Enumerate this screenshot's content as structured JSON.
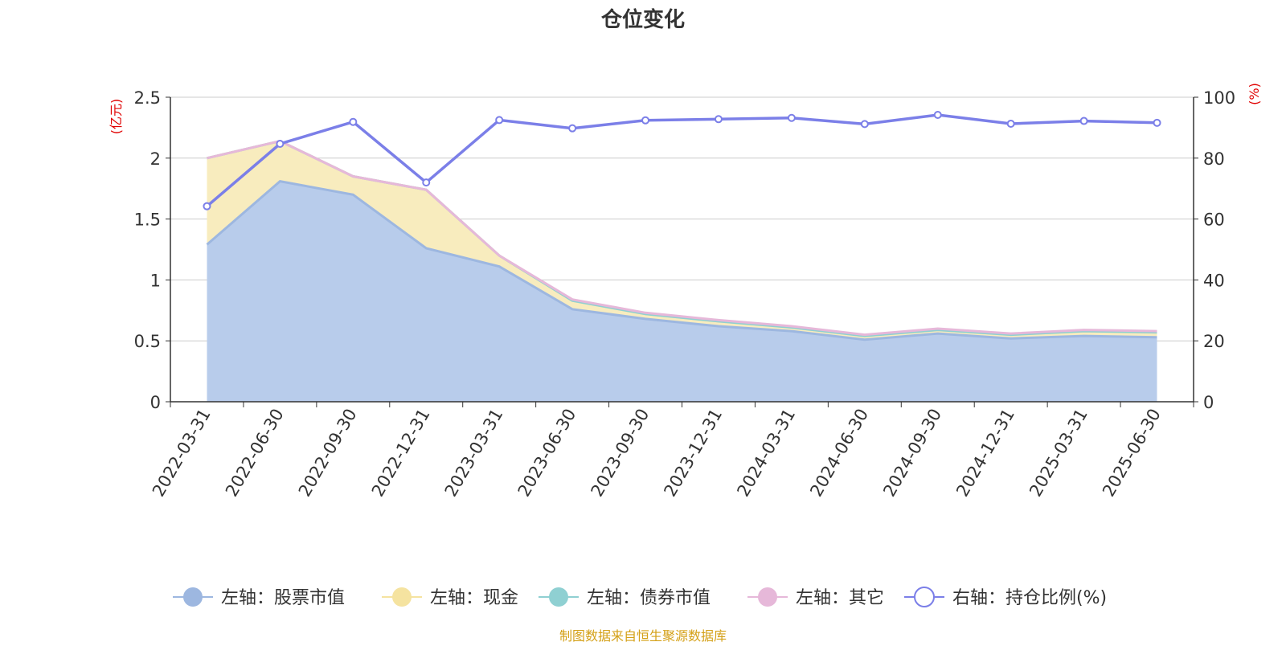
{
  "chart_data": {
    "type": "area",
    "title": "仓位变化",
    "left_axis": {
      "unit_label": "(亿元)",
      "ylim": [
        0,
        2.5
      ],
      "ticks": [
        "0",
        "0.5",
        "1",
        "1.5",
        "2",
        "2.5"
      ]
    },
    "right_axis": {
      "unit_label": "(%)",
      "ylim": [
        0,
        100
      ],
      "ticks": [
        "0",
        "20",
        "40",
        "60",
        "80",
        "100"
      ]
    },
    "grid": true,
    "categories": [
      "2022-03-31",
      "2022-06-30",
      "2022-09-30",
      "2022-12-31",
      "2023-03-31",
      "2023-06-30",
      "2023-09-30",
      "2023-12-31",
      "2024-03-31",
      "2024-06-30",
      "2024-09-30",
      "2024-12-31",
      "2025-03-31",
      "2025-06-30"
    ],
    "series": [
      {
        "name": "左轴：股票市值",
        "axis": "left",
        "kind": "stacked-area",
        "color": "#9db7e0",
        "fill": "#b8cceb",
        "values": [
          1.29,
          1.81,
          1.7,
          1.26,
          1.11,
          0.76,
          0.68,
          0.62,
          0.58,
          0.51,
          0.56,
          0.52,
          0.54,
          0.53
        ]
      },
      {
        "name": "左轴：现金",
        "axis": "left",
        "kind": "stacked-area",
        "color": "#f5e3a0",
        "fill": "#f8ecbe",
        "values": [
          0.71,
          0.33,
          0.15,
          0.48,
          0.09,
          0.07,
          0.04,
          0.04,
          0.03,
          0.03,
          0.03,
          0.03,
          0.04,
          0.04
        ]
      },
      {
        "name": "左轴：债券市值",
        "axis": "left",
        "kind": "stacked-area",
        "color": "#8fd0d2",
        "fill": "#b7e1e2",
        "values": [
          0,
          0,
          0,
          0,
          0,
          0,
          0,
          0,
          0,
          0,
          0,
          0,
          0,
          0
        ]
      },
      {
        "name": "左轴：其它",
        "axis": "left",
        "kind": "stacked-area",
        "color": "#e6b8d9",
        "fill": "#efcfe5",
        "values": [
          0,
          0,
          0,
          0,
          0,
          0.01,
          0.01,
          0.01,
          0.01,
          0.01,
          0.01,
          0.01,
          0.01,
          0.01
        ]
      },
      {
        "name": "右轴：持仓比例(%)",
        "axis": "right",
        "kind": "line",
        "color": "#7b7fe8",
        "values": [
          64.2,
          84.7,
          91.9,
          72.0,
          92.5,
          89.8,
          92.4,
          92.8,
          93.2,
          91.2,
          94.2,
          91.3,
          92.2,
          91.6
        ]
      }
    ],
    "legend_position": "bottom"
  },
  "footer": {
    "source": "制图数据来自恒生聚源数据库"
  }
}
